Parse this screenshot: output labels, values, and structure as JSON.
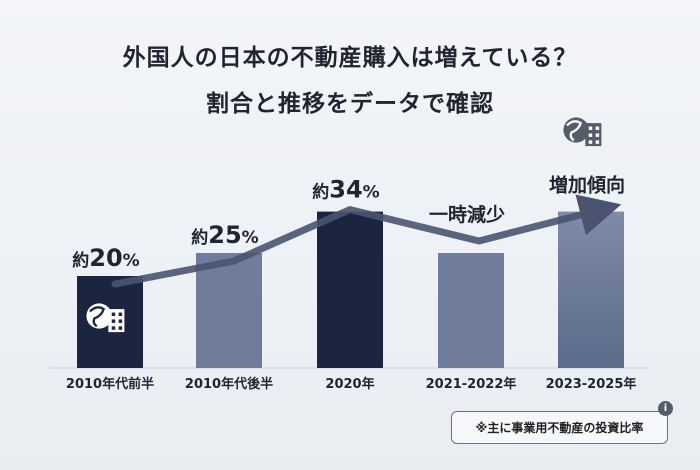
{
  "title_line1": "外国人の日本の不動産購入は増えている？",
  "title_line2": "割合と推移をデータで確認",
  "note": "※主に事業用不動産の投資比率",
  "info_icon": "i",
  "icons": {
    "globe_building": "globe-building-icon"
  },
  "colors": {
    "dark_bar": "#1c2540",
    "light_bar": "#6f7c9b",
    "last_bar": "#5c6a8c",
    "arrow": "#4a5470"
  },
  "chart_data": {
    "type": "bar",
    "categories": [
      "2010年代前半",
      "2010年代後半",
      "2020年",
      "2021-2022年",
      "2023-2025年"
    ],
    "values": [
      20,
      25,
      34,
      25,
      34
    ],
    "labels": [
      {
        "prefix": "約",
        "number": "20",
        "suffix": "%"
      },
      {
        "prefix": "約",
        "number": "25",
        "suffix": "%"
      },
      {
        "prefix": "約",
        "number": "34",
        "suffix": "%"
      },
      {
        "prefix": "",
        "number": "一時減少",
        "suffix": ""
      },
      {
        "prefix": "",
        "number": "増加傾向",
        "suffix": ""
      }
    ],
    "highlight": [
      0,
      2
    ],
    "ylim": [
      0,
      40
    ]
  }
}
